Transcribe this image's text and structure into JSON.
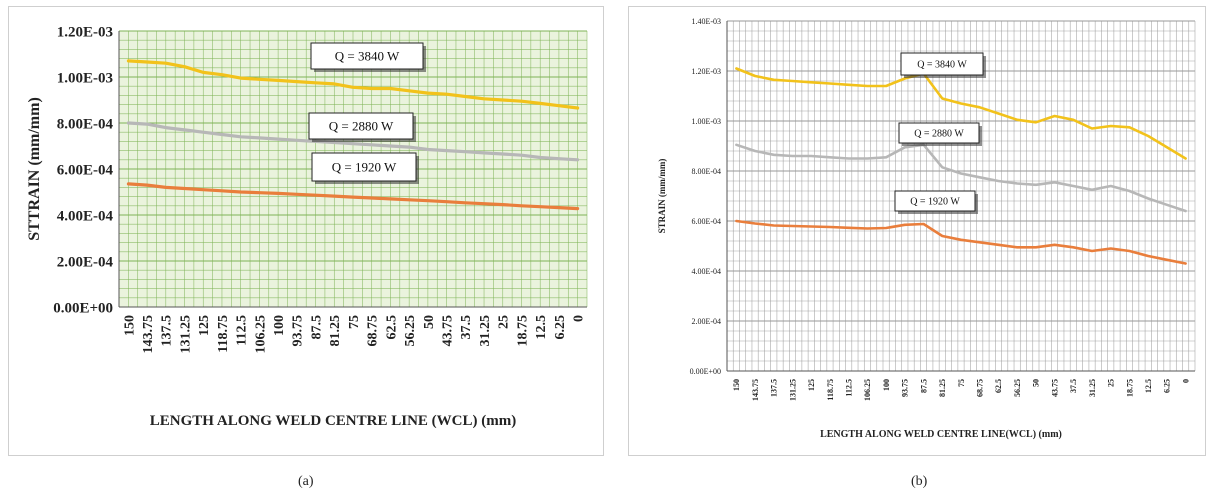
{
  "captions": {
    "a": "(a)",
    "b": "(b)"
  },
  "chart_data": [
    {
      "type": "line",
      "ylabel": "STTRAIN (mm/mm)",
      "xlabel": "LENGTH ALONG WELD CENTRE LINE (WCL) (mm)",
      "ylim": [
        0,
        0.0012
      ],
      "yticks": [
        0,
        0.0002,
        0.0004,
        0.0006,
        0.0008,
        0.001,
        0.0012
      ],
      "ytick_labels": [
        "0.00E+00",
        "2.00E-04",
        "4.00E-04",
        "6.00E-04",
        "8.00E-04",
        "1.00E-03",
        "1.20E-03"
      ],
      "x": [
        150,
        143.75,
        137.5,
        131.25,
        125,
        118.75,
        112.5,
        106.25,
        100,
        93.75,
        87.5,
        81.25,
        75,
        68.75,
        62.5,
        56.25,
        50,
        43.75,
        37.5,
        31.25,
        25,
        18.75,
        12.5,
        6.25,
        0
      ],
      "xtick_labels": [
        "150",
        "143.75",
        "137.5",
        "131.25",
        "125",
        "118.75",
        "112.5",
        "106.25",
        "100",
        "93.75",
        "87.5",
        "81.25",
        "75",
        "68.75",
        "62.5",
        "56.25",
        "50",
        "43.75",
        "37.5",
        "31.25",
        "25",
        "18.75",
        "12.5",
        "6.25",
        "0"
      ],
      "grid": true,
      "background": "#eaf3dd",
      "grid_color": "#7fb356",
      "series": [
        {
          "name": "Q = 3840 W",
          "color": "#f2c21b",
          "values": [
            0.00107,
            0.001065,
            0.00106,
            0.001045,
            0.00102,
            0.00101,
            0.000995,
            0.00099,
            0.000985,
            0.00098,
            0.000975,
            0.00097,
            0.000955,
            0.00095,
            0.00095,
            0.00094,
            0.00093,
            0.000925,
            0.000915,
            0.000905,
            0.0009,
            0.000895,
            0.000885,
            0.000875,
            0.000865
          ]
        },
        {
          "name": "Q = 2880 W",
          "color": "#b7b7b7",
          "values": [
            0.0008,
            0.000795,
            0.00078,
            0.00077,
            0.00076,
            0.00075,
            0.00074,
            0.000735,
            0.00073,
            0.000725,
            0.00072,
            0.000715,
            0.00071,
            0.000705,
            0.0007,
            0.000695,
            0.000685,
            0.00068,
            0.000675,
            0.00067,
            0.000665,
            0.00066,
            0.00065,
            0.000645,
            0.00064
          ]
        },
        {
          "name": "Q = 1920 W",
          "color": "#e97e3c",
          "values": [
            0.000535,
            0.00053,
            0.00052,
            0.000515,
            0.00051,
            0.000505,
            0.0005,
            0.000497,
            0.000494,
            0.00049,
            0.000486,
            0.000482,
            0.000478,
            0.000474,
            0.00047,
            0.000466,
            0.000462,
            0.000458,
            0.000453,
            0.000449,
            0.000445,
            0.00044,
            0.000436,
            0.000432,
            0.000428
          ]
        }
      ]
    },
    {
      "type": "line",
      "ylabel": "STRAIN (mm/mm)",
      "xlabel": "LENGTH ALONG WELD CENTRE LINE(WCL) (mm)",
      "ylim": [
        0,
        0.0014
      ],
      "yticks": [
        0,
        0.0002,
        0.0004,
        0.0006,
        0.0008,
        0.001,
        0.0012,
        0.0014
      ],
      "ytick_labels": [
        "0.00E+00",
        "2.00E-04",
        "4.00E-04",
        "6.00E-04",
        "8.00E-04",
        "1.00E-03",
        "1.20E-03",
        "1.40E-03"
      ],
      "x": [
        150,
        143.75,
        137.5,
        131.25,
        125,
        118.75,
        112.5,
        106.25,
        100,
        93.75,
        87.5,
        81.25,
        75,
        68.75,
        62.5,
        56.25,
        50,
        43.75,
        37.5,
        31.25,
        25,
        18.75,
        12.5,
        6.25,
        0
      ],
      "xtick_labels": [
        "150",
        "143.75",
        "137.5",
        "131.25",
        "125",
        "118.75",
        "112.5",
        "106.25",
        "100",
        "93.75",
        "87.5",
        "81.25",
        "75",
        "68.75",
        "62.5",
        "56.25",
        "50",
        "43.75",
        "37.5",
        "31.25",
        "25",
        "18.75",
        "12.5",
        "6.25",
        "0"
      ],
      "grid": true,
      "background": "#ffffff",
      "grid_color": "#9a9a9a",
      "series": [
        {
          "name": "Q = 3840 W",
          "color": "#f2c21b",
          "values": [
            0.00121,
            0.00118,
            0.001165,
            0.00116,
            0.001155,
            0.00115,
            0.001145,
            0.00114,
            0.00114,
            0.00117,
            0.00119,
            0.00109,
            0.00107,
            0.001055,
            0.00103,
            0.001005,
            0.000995,
            0.00102,
            0.001005,
            0.00097,
            0.00098,
            0.000975,
            0.00094,
            0.000895,
            0.00085
          ]
        },
        {
          "name": "Q = 2880 W",
          "color": "#b7b7b7",
          "values": [
            0.000905,
            0.00088,
            0.000865,
            0.00086,
            0.00086,
            0.000855,
            0.00085,
            0.00085,
            0.000855,
            0.000895,
            0.000905,
            0.000815,
            0.00079,
            0.000775,
            0.00076,
            0.00075,
            0.000745,
            0.000755,
            0.00074,
            0.000725,
            0.00074,
            0.00072,
            0.00069,
            0.000665,
            0.00064
          ]
        },
        {
          "name": "Q = 1920 W",
          "color": "#e97e3c",
          "values": [
            0.0006,
            0.00059,
            0.000582,
            0.00058,
            0.000578,
            0.000576,
            0.000573,
            0.00057,
            0.000572,
            0.000585,
            0.000588,
            0.00054,
            0.000525,
            0.000515,
            0.000505,
            0.000495,
            0.000495,
            0.000505,
            0.000495,
            0.00048,
            0.00049,
            0.00048,
            0.00046,
            0.000445,
            0.00043
          ]
        }
      ]
    }
  ]
}
